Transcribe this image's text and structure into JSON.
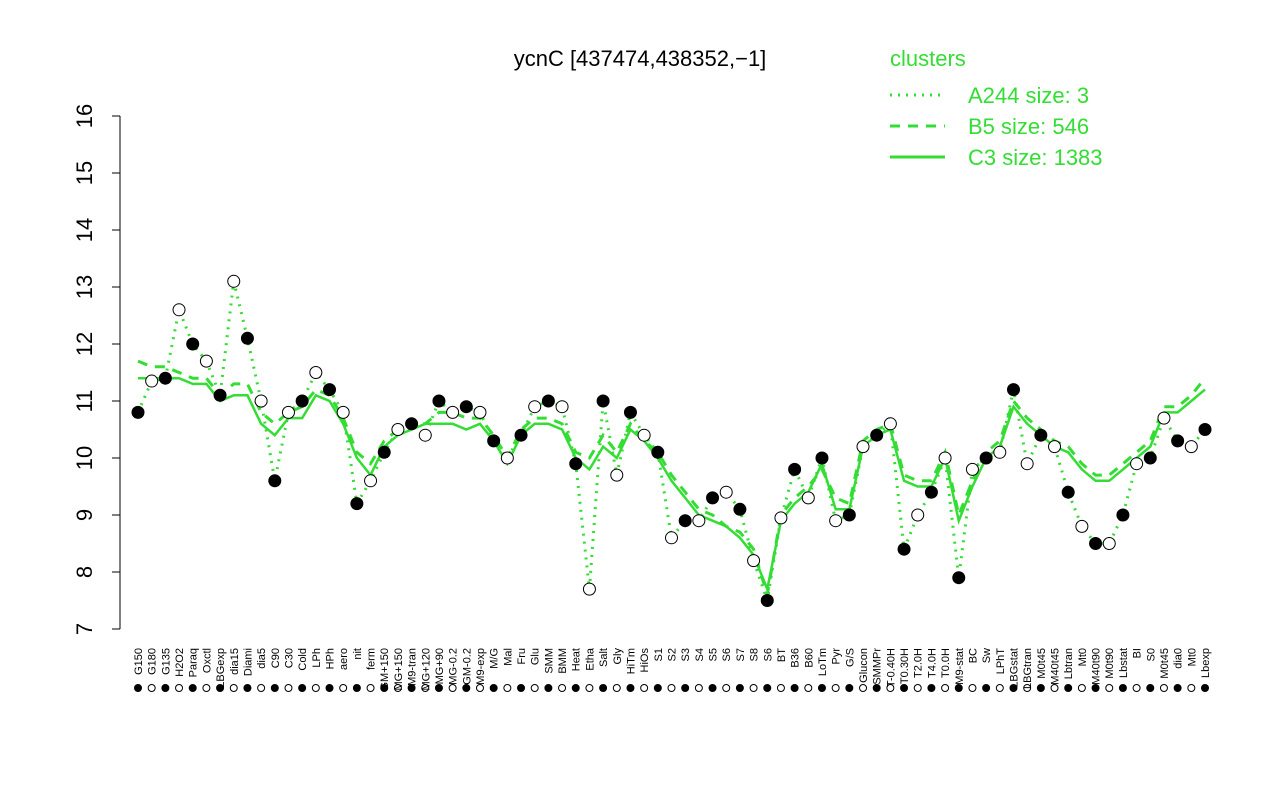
{
  "chart_data": {
    "type": "line",
    "title": "ycnC [437474,438352,−1]",
    "legend_title": "clusters",
    "legend_position": "top-right",
    "ylim": [
      7,
      16
    ],
    "yticks": [
      7,
      8,
      9,
      10,
      11,
      12,
      13,
      14,
      15,
      16
    ],
    "point_color": "#000000",
    "categories": [
      "G150",
      "G180",
      "G135",
      "H2O2",
      "Paraq",
      "Oxctl",
      "LBGexp",
      "dia15",
      "Diami",
      "dia5",
      "C90",
      "C30",
      "Cold",
      "LPh",
      "HPh",
      "aero",
      "nit",
      "ferm",
      "GM+150",
      "MG+150",
      "M9-tran",
      "MG+120",
      "MG+90",
      "MG-0.2",
      "GM-0.2",
      "M9-exp",
      "M/G",
      "Mal",
      "Fru",
      "Glu",
      "SMM",
      "BMM",
      "Heat",
      "Etha",
      "Salt",
      "Gly",
      "HiTm",
      "HiOs",
      "S1",
      "S2",
      "S3",
      "S4",
      "S5",
      "S6",
      "S7",
      "S8",
      "S6",
      "BT",
      "B36",
      "B60",
      "LoTm",
      "Pyr",
      "G/S",
      "Glucon",
      "SMMPr",
      "T-0.40H",
      "T0.30H",
      "T2.0H",
      "T4.0H",
      "T0.0H",
      "M9-stat",
      "BC",
      "Sw",
      "LPhT",
      "LBGstat",
      "LBGtran",
      "M0t45",
      "M40t45",
      "Lbtran",
      "Mt0",
      "M40t90",
      "M0t90",
      "Lbstat",
      "BI",
      "S0",
      "M0t45",
      "dia0",
      "Mt0",
      "Lbexp"
    ],
    "values": [
      10.8,
      11.35,
      11.4,
      12.6,
      12.0,
      11.7,
      11.1,
      13.1,
      12.1,
      11.0,
      9.6,
      10.8,
      11.0,
      11.5,
      11.2,
      10.8,
      9.2,
      9.6,
      10.1,
      10.5,
      10.6,
      10.4,
      11.0,
      10.8,
      10.9,
      10.8,
      10.3,
      10.0,
      10.4,
      10.9,
      11.0,
      10.9,
      9.9,
      7.7,
      11.0,
      9.7,
      10.8,
      10.4,
      10.1,
      8.6,
      8.9,
      8.9,
      9.3,
      9.4,
      9.1,
      8.2,
      7.5,
      8.95,
      9.8,
      9.3,
      10.0,
      8.9,
      9.0,
      10.2,
      10.4,
      10.6,
      8.4,
      9.0,
      9.4,
      10.0,
      7.9,
      9.8,
      10.0,
      10.1,
      11.2,
      9.9,
      10.4,
      10.2,
      9.4,
      8.8,
      8.5,
      8.5,
      9.0,
      9.9,
      10.0,
      10.7,
      10.3,
      10.2,
      10.5
    ],
    "series": [
      {
        "name": "A244 size: 3",
        "color": "#33dd33",
        "style": "dotted",
        "values": [
          10.8,
          11.35,
          11.4,
          12.6,
          12.0,
          11.7,
          11.1,
          13.1,
          12.1,
          11.0,
          9.6,
          10.8,
          11.0,
          11.5,
          11.2,
          10.8,
          9.2,
          9.6,
          10.1,
          10.5,
          10.6,
          10.4,
          11.0,
          10.8,
          10.9,
          10.8,
          10.3,
          10.0,
          10.4,
          10.9,
          11.0,
          10.9,
          9.9,
          7.7,
          11.0,
          9.7,
          10.8,
          10.4,
          10.1,
          8.6,
          8.9,
          8.9,
          9.3,
          9.4,
          9.1,
          8.2,
          7.5,
          8.95,
          9.8,
          9.3,
          10.0,
          8.9,
          9.0,
          10.2,
          10.4,
          10.6,
          8.4,
          9.0,
          9.4,
          10.0,
          7.9,
          9.8,
          10.0,
          10.1,
          11.2,
          9.9,
          10.4,
          10.2,
          9.4,
          8.8,
          8.5,
          8.5,
          9.0,
          9.9,
          10.0,
          10.7,
          10.3,
          10.2,
          10.5
        ]
      },
      {
        "name": "B5 size: 546",
        "color": "#33dd33",
        "style": "dashed",
        "values": [
          11.7,
          11.6,
          11.6,
          11.5,
          11.4,
          11.4,
          11.1,
          11.3,
          11.3,
          10.8,
          10.6,
          10.8,
          10.9,
          11.2,
          11.1,
          10.7,
          10.1,
          9.9,
          10.3,
          10.5,
          10.6,
          10.6,
          10.8,
          10.8,
          10.7,
          10.7,
          10.4,
          10.0,
          10.5,
          10.7,
          10.7,
          10.6,
          10.1,
          10.0,
          10.4,
          10.1,
          10.6,
          10.3,
          10.1,
          9.7,
          9.4,
          9.1,
          9.0,
          8.8,
          8.7,
          8.4,
          7.6,
          9.0,
          9.3,
          9.5,
          9.8,
          9.3,
          9.2,
          10.3,
          10.5,
          10.6,
          9.7,
          9.6,
          9.6,
          10.1,
          9.0,
          9.6,
          10.1,
          10.3,
          11.0,
          10.7,
          10.5,
          10.3,
          10.2,
          9.9,
          9.7,
          9.7,
          9.9,
          10.1,
          10.3,
          10.9,
          10.9,
          11.1,
          11.4
        ]
      },
      {
        "name": "C3 size: 1383",
        "color": "#33dd33",
        "style": "solid",
        "values": [
          11.4,
          11.4,
          11.4,
          11.4,
          11.3,
          11.3,
          11.0,
          11.1,
          11.1,
          10.6,
          10.4,
          10.7,
          10.7,
          11.1,
          11.0,
          10.6,
          10.0,
          9.7,
          10.2,
          10.4,
          10.5,
          10.6,
          10.6,
          10.6,
          10.5,
          10.6,
          10.3,
          9.9,
          10.4,
          10.6,
          10.6,
          10.5,
          10.0,
          9.8,
          10.2,
          10.0,
          10.5,
          10.3,
          10.0,
          9.6,
          9.3,
          9.0,
          8.9,
          8.8,
          8.6,
          8.3,
          7.7,
          8.9,
          9.2,
          9.4,
          9.9,
          9.1,
          9.1,
          10.2,
          10.4,
          10.5,
          9.6,
          9.5,
          9.5,
          10.0,
          8.9,
          9.5,
          10.0,
          10.2,
          10.9,
          10.6,
          10.4,
          10.2,
          10.1,
          9.8,
          9.6,
          9.6,
          9.8,
          10.0,
          10.2,
          10.8,
          10.8,
          11.0,
          11.2
        ]
      }
    ]
  }
}
